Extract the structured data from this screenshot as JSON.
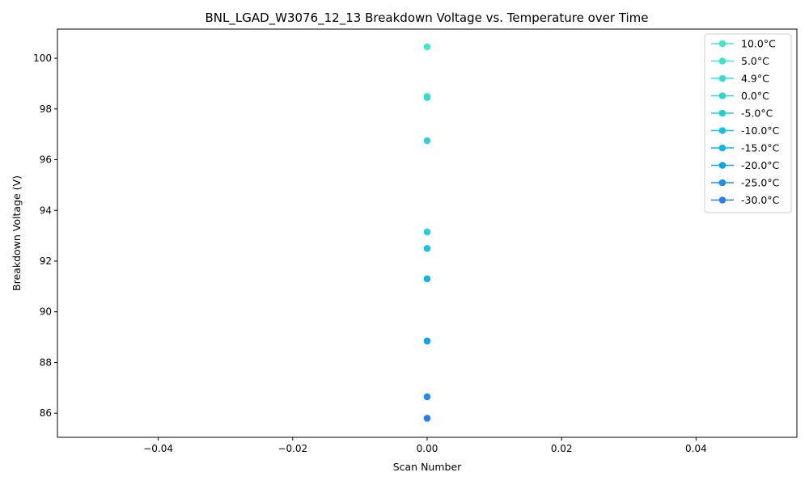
{
  "chart_data": {
    "type": "scatter",
    "title": "BNL_LGAD_W3076_12_13 Breakdown Voltage vs. Temperature over Time",
    "xlabel": "Scan Number",
    "ylabel": "Breakdown Voltage (V)",
    "xlim": [
      -0.055,
      0.055
    ],
    "ylim": [
      85.05,
      101.15
    ],
    "x_ticks": [
      -0.04,
      -0.02,
      0.0,
      0.02,
      0.04
    ],
    "x_tick_labels": [
      "−0.04",
      "−0.02",
      "0.00",
      "0.02",
      "0.04"
    ],
    "y_ticks": [
      86,
      88,
      90,
      92,
      94,
      96,
      98,
      100
    ],
    "y_tick_labels": [
      "86",
      "88",
      "90",
      "92",
      "94",
      "96",
      "98",
      "100"
    ],
    "grid": false,
    "legend_position": "top-right",
    "series": [
      {
        "name": "10.0°C",
        "color": "#40e8c8",
        "x": [
          0
        ],
        "y": [
          100.45
        ]
      },
      {
        "name": "5.0°C",
        "color": "#3de2cb",
        "x": [
          0
        ],
        "y": [
          98.5
        ]
      },
      {
        "name": "4.9°C",
        "color": "#38dccf",
        "x": [
          0
        ],
        "y": [
          98.45
        ]
      },
      {
        "name": "0.0°C",
        "color": "#2fd4d5",
        "x": [
          0
        ],
        "y": [
          96.75
        ]
      },
      {
        "name": "-5.0°C",
        "color": "#22cddc",
        "x": [
          0
        ],
        "y": [
          93.15
        ]
      },
      {
        "name": "-10.0°C",
        "color": "#17c3e3",
        "x": [
          0
        ],
        "y": [
          92.5
        ]
      },
      {
        "name": "-15.0°C",
        "color": "#0cb6ea",
        "x": [
          0
        ],
        "y": [
          91.3
        ]
      },
      {
        "name": "-20.0°C",
        "color": "#0aa4ec",
        "x": [
          0
        ],
        "y": [
          88.85
        ]
      },
      {
        "name": "-25.0°C",
        "color": "#1990ee",
        "x": [
          0
        ],
        "y": [
          86.65
        ]
      },
      {
        "name": "-30.0°C",
        "color": "#2a7ff0",
        "x": [
          0
        ],
        "y": [
          85.8
        ]
      }
    ]
  }
}
